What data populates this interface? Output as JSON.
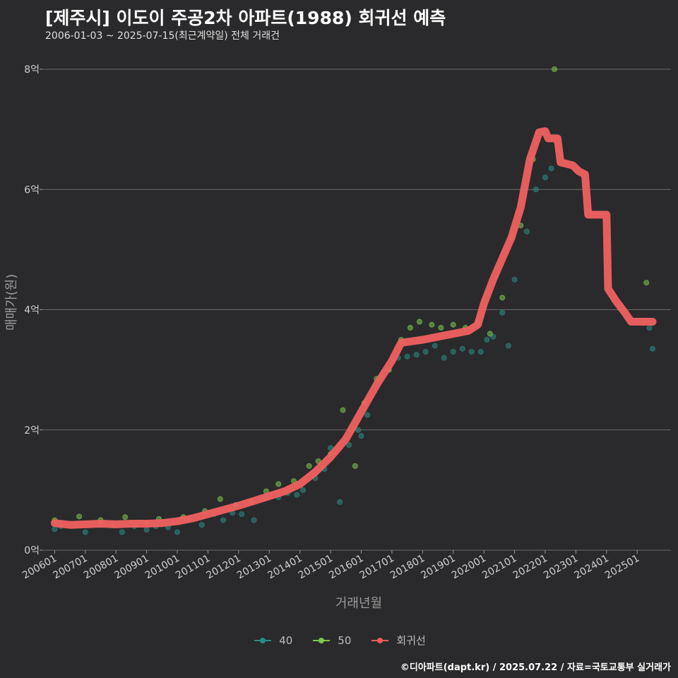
{
  "header": {
    "title": "[제주시] 이도이 주공2차 아파트(1988) 회귀선 예측",
    "subtitle": "2006-01-03 ~ 2025-07-15(최근계약일) 전체 거래건"
  },
  "footer": {
    "credit": "©디아파트(dapt.kr) / 2025.07.22 / 자료=국토교통부 실거래가"
  },
  "legend": [
    {
      "label": "40",
      "color": "#2a8c86"
    },
    {
      "label": "50",
      "color": "#7ec850"
    },
    {
      "label": "회귀선",
      "color": "#f05a5a"
    }
  ],
  "colors": {
    "background": "#2a2a2c",
    "grid": "#6a6a6a",
    "regression": "#f06060",
    "s40": "#2a8c86",
    "s50": "#7ec850"
  },
  "chart_data": {
    "type": "scatter",
    "xlabel": "거래년월",
    "ylabel": "매매가(원)",
    "ylim": [
      0,
      8
    ],
    "y_unit": "억",
    "yticks": [
      {
        "value": 0,
        "label": "0억"
      },
      {
        "value": 2,
        "label": "2억"
      },
      {
        "value": 4,
        "label": "4억"
      },
      {
        "value": 6,
        "label": "6억"
      },
      {
        "value": 8,
        "label": "8억"
      }
    ],
    "xlim": [
      2005.6,
      2026.1
    ],
    "xticks": [
      "200601",
      "200701",
      "200801",
      "200901",
      "201001",
      "201101",
      "201201",
      "201301",
      "201401",
      "201501",
      "201601",
      "201701",
      "201801",
      "201901",
      "202001",
      "202101",
      "202201",
      "202301",
      "202401",
      "202501"
    ],
    "grid": true,
    "legend_position": "bottom",
    "regression": {
      "name": "회귀선",
      "x": [
        2006.0,
        2006.5,
        2007.0,
        2007.5,
        2008.0,
        2008.5,
        2009.0,
        2009.5,
        2010.0,
        2010.5,
        2011.0,
        2011.5,
        2012.0,
        2012.5,
        2013.0,
        2013.5,
        2014.0,
        2014.5,
        2015.0,
        2015.5,
        2016.0,
        2016.5,
        2017.0,
        2017.3,
        2017.6,
        2018.0,
        2018.5,
        2019.0,
        2019.5,
        2019.8,
        2020.0,
        2020.3,
        2020.6,
        2020.9,
        2021.2,
        2021.5,
        2021.8,
        2022.0,
        2022.1,
        2022.4,
        2022.5,
        2022.9,
        2023.1,
        2023.3,
        2023.4,
        2024.0,
        2024.05,
        2024.3,
        2024.6,
        2024.8,
        2025.0,
        2025.5
      ],
      "y": [
        0.45,
        0.42,
        0.43,
        0.44,
        0.43,
        0.44,
        0.44,
        0.45,
        0.48,
        0.53,
        0.6,
        0.67,
        0.74,
        0.82,
        0.9,
        0.98,
        1.1,
        1.3,
        1.55,
        1.85,
        2.3,
        2.75,
        3.15,
        3.45,
        3.47,
        3.5,
        3.55,
        3.6,
        3.65,
        3.75,
        4.1,
        4.5,
        4.85,
        5.2,
        5.7,
        6.5,
        6.95,
        6.97,
        6.85,
        6.85,
        6.45,
        6.4,
        6.3,
        6.25,
        5.58,
        5.58,
        4.35,
        4.15,
        3.95,
        3.8,
        3.8,
        3.8
      ]
    },
    "series": [
      {
        "name": "40",
        "x": [
          2006.0,
          2006.2,
          2006.7,
          2007.0,
          2007.5,
          2007.9,
          2008.2,
          2008.6,
          2009.0,
          2009.3,
          2009.7,
          2010.0,
          2010.4,
          2010.8,
          2011.2,
          2011.5,
          2011.8,
          2012.1,
          2012.5,
          2012.8,
          2013.0,
          2013.3,
          2013.6,
          2013.9,
          2014.1,
          2014.5,
          2014.8,
          2015.0,
          2015.3,
          2015.6,
          2015.9,
          2016.0,
          2016.2,
          2016.6,
          2016.9,
          2017.2,
          2017.5,
          2017.8,
          2018.1,
          2018.4,
          2018.7,
          2019.0,
          2019.3,
          2019.6,
          2019.9,
          2020.1,
          2020.3,
          2020.6,
          2020.8,
          2021.0,
          2021.4,
          2021.7,
          2022.0,
          2022.2,
          2025.4,
          2025.5
        ],
        "y": [
          0.35,
          0.4,
          0.44,
          0.3,
          0.42,
          0.41,
          0.3,
          0.4,
          0.34,
          0.4,
          0.38,
          0.3,
          0.52,
          0.42,
          0.6,
          0.5,
          0.62,
          0.6,
          0.5,
          0.85,
          0.9,
          0.88,
          0.95,
          0.92,
          1.0,
          1.2,
          1.35,
          1.7,
          0.8,
          1.75,
          2.0,
          1.9,
          2.25,
          2.85,
          3.0,
          3.2,
          3.22,
          3.25,
          3.3,
          3.4,
          3.2,
          3.3,
          3.35,
          3.3,
          3.3,
          3.5,
          3.55,
          3.95,
          3.4,
          4.5,
          5.3,
          6.0,
          6.2,
          6.35,
          3.7,
          3.35
        ]
      },
      {
        "name": "50",
        "x": [
          2006.0,
          2006.8,
          2007.5,
          2008.3,
          2009.0,
          2009.4,
          2010.2,
          2010.9,
          2011.4,
          2011.9,
          2012.4,
          2012.9,
          2013.3,
          2013.8,
          2014.3,
          2014.6,
          2015.0,
          2015.4,
          2015.8,
          2016.1,
          2016.5,
          2016.9,
          2017.3,
          2017.6,
          2017.9,
          2018.3,
          2018.6,
          2019.0,
          2019.4,
          2019.8,
          2020.2,
          2020.6,
          2020.9,
          2021.2,
          2021.6,
          2022.3,
          2025.3
        ],
        "y": [
          0.5,
          0.56,
          0.5,
          0.55,
          0.45,
          0.52,
          0.55,
          0.65,
          0.85,
          0.75,
          0.8,
          0.98,
          1.1,
          1.15,
          1.4,
          1.48,
          1.6,
          2.33,
          1.4,
          2.45,
          2.85,
          3.0,
          3.5,
          3.7,
          3.8,
          3.75,
          3.7,
          3.75,
          3.7,
          3.8,
          3.6,
          4.2,
          5.2,
          5.4,
          6.5,
          8.0,
          4.45
        ]
      }
    ]
  }
}
